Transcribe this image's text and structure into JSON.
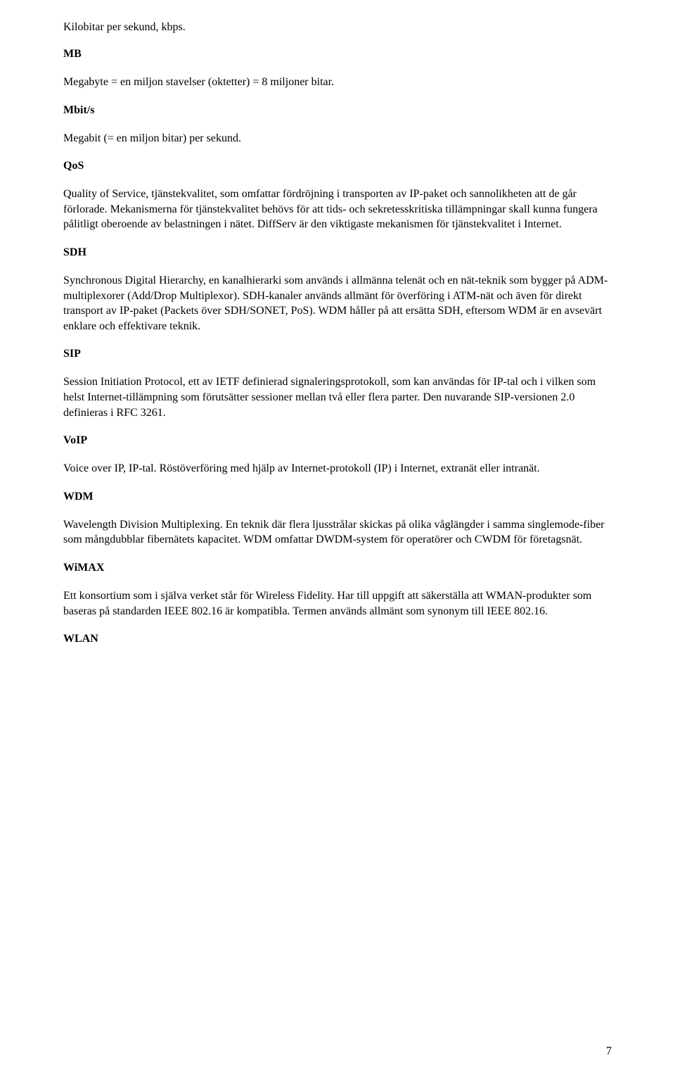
{
  "page": {
    "top_line": "Kilobitar per sekund, kbps.",
    "page_number": "7"
  },
  "entries": [
    {
      "term": "MB",
      "definition": "Megabyte = en miljon stavelser (oktetter) = 8 miljoner bitar."
    },
    {
      "term": "Mbit/s",
      "definition": "Megabit (= en miljon bitar) per sekund."
    },
    {
      "term": "QoS",
      "definition": "Quality of Service, tjänstekvalitet, som omfattar fördröjning i transporten av IP-paket och sannolikheten att de går förlorade. Mekanismerna för tjänstekvalitet behövs för att tids- och sekretesskritiska tillämpningar skall kunna fungera pålitligt oberoende av belastningen i nätet. DiffServ är den viktigaste mekanismen för tjänstekvalitet i Internet."
    },
    {
      "term": "SDH",
      "definition": "Synchronous Digital Hierarchy, en kanalhierarki som används i allmänna telenät och en nät-teknik som bygger på ADM-multiplexorer (Add/Drop Multiplexor). SDH-kanaler används allmänt för överföring i ATM-nät och även för direkt transport av IP-paket (Packets över SDH/SONET, PoS). WDM håller på att ersätta SDH, eftersom WDM är en avsevärt enklare och effektivare teknik."
    },
    {
      "term": "SIP",
      "definition": "Session Initiation Protocol, ett av IETF definierad signaleringsprotokoll, som kan användas för IP-tal och i vilken som helst Internet-tillämpning som förutsätter sessioner mellan två eller flera parter. Den nuvarande SIP-versionen 2.0 definieras i RFC 3261."
    },
    {
      "term": "VoIP",
      "definition": "Voice over IP, IP-tal. Röstöverföring med hjälp av Internet-protokoll (IP) i Internet, extranät eller intranät."
    },
    {
      "term": "WDM",
      "definition": "Wavelength Division Multiplexing. En teknik där flera ljusstrålar skickas på olika våglängder i samma singlemode-fiber som mångdubblar fibernätets kapacitet. WDM omfattar DWDM-system för operatörer och CWDM för företagsnät."
    },
    {
      "term": "WiMAX",
      "definition": "Ett konsortium som i själva verket står för Wireless Fidelity. Har till uppgift att säkerställa att WMAN-produkter som baseras på standarden IEEE 802.16 är kompatibla. Termen används allmänt som synonym till IEEE 802.16."
    },
    {
      "term": "WLAN",
      "definition": ""
    }
  ]
}
